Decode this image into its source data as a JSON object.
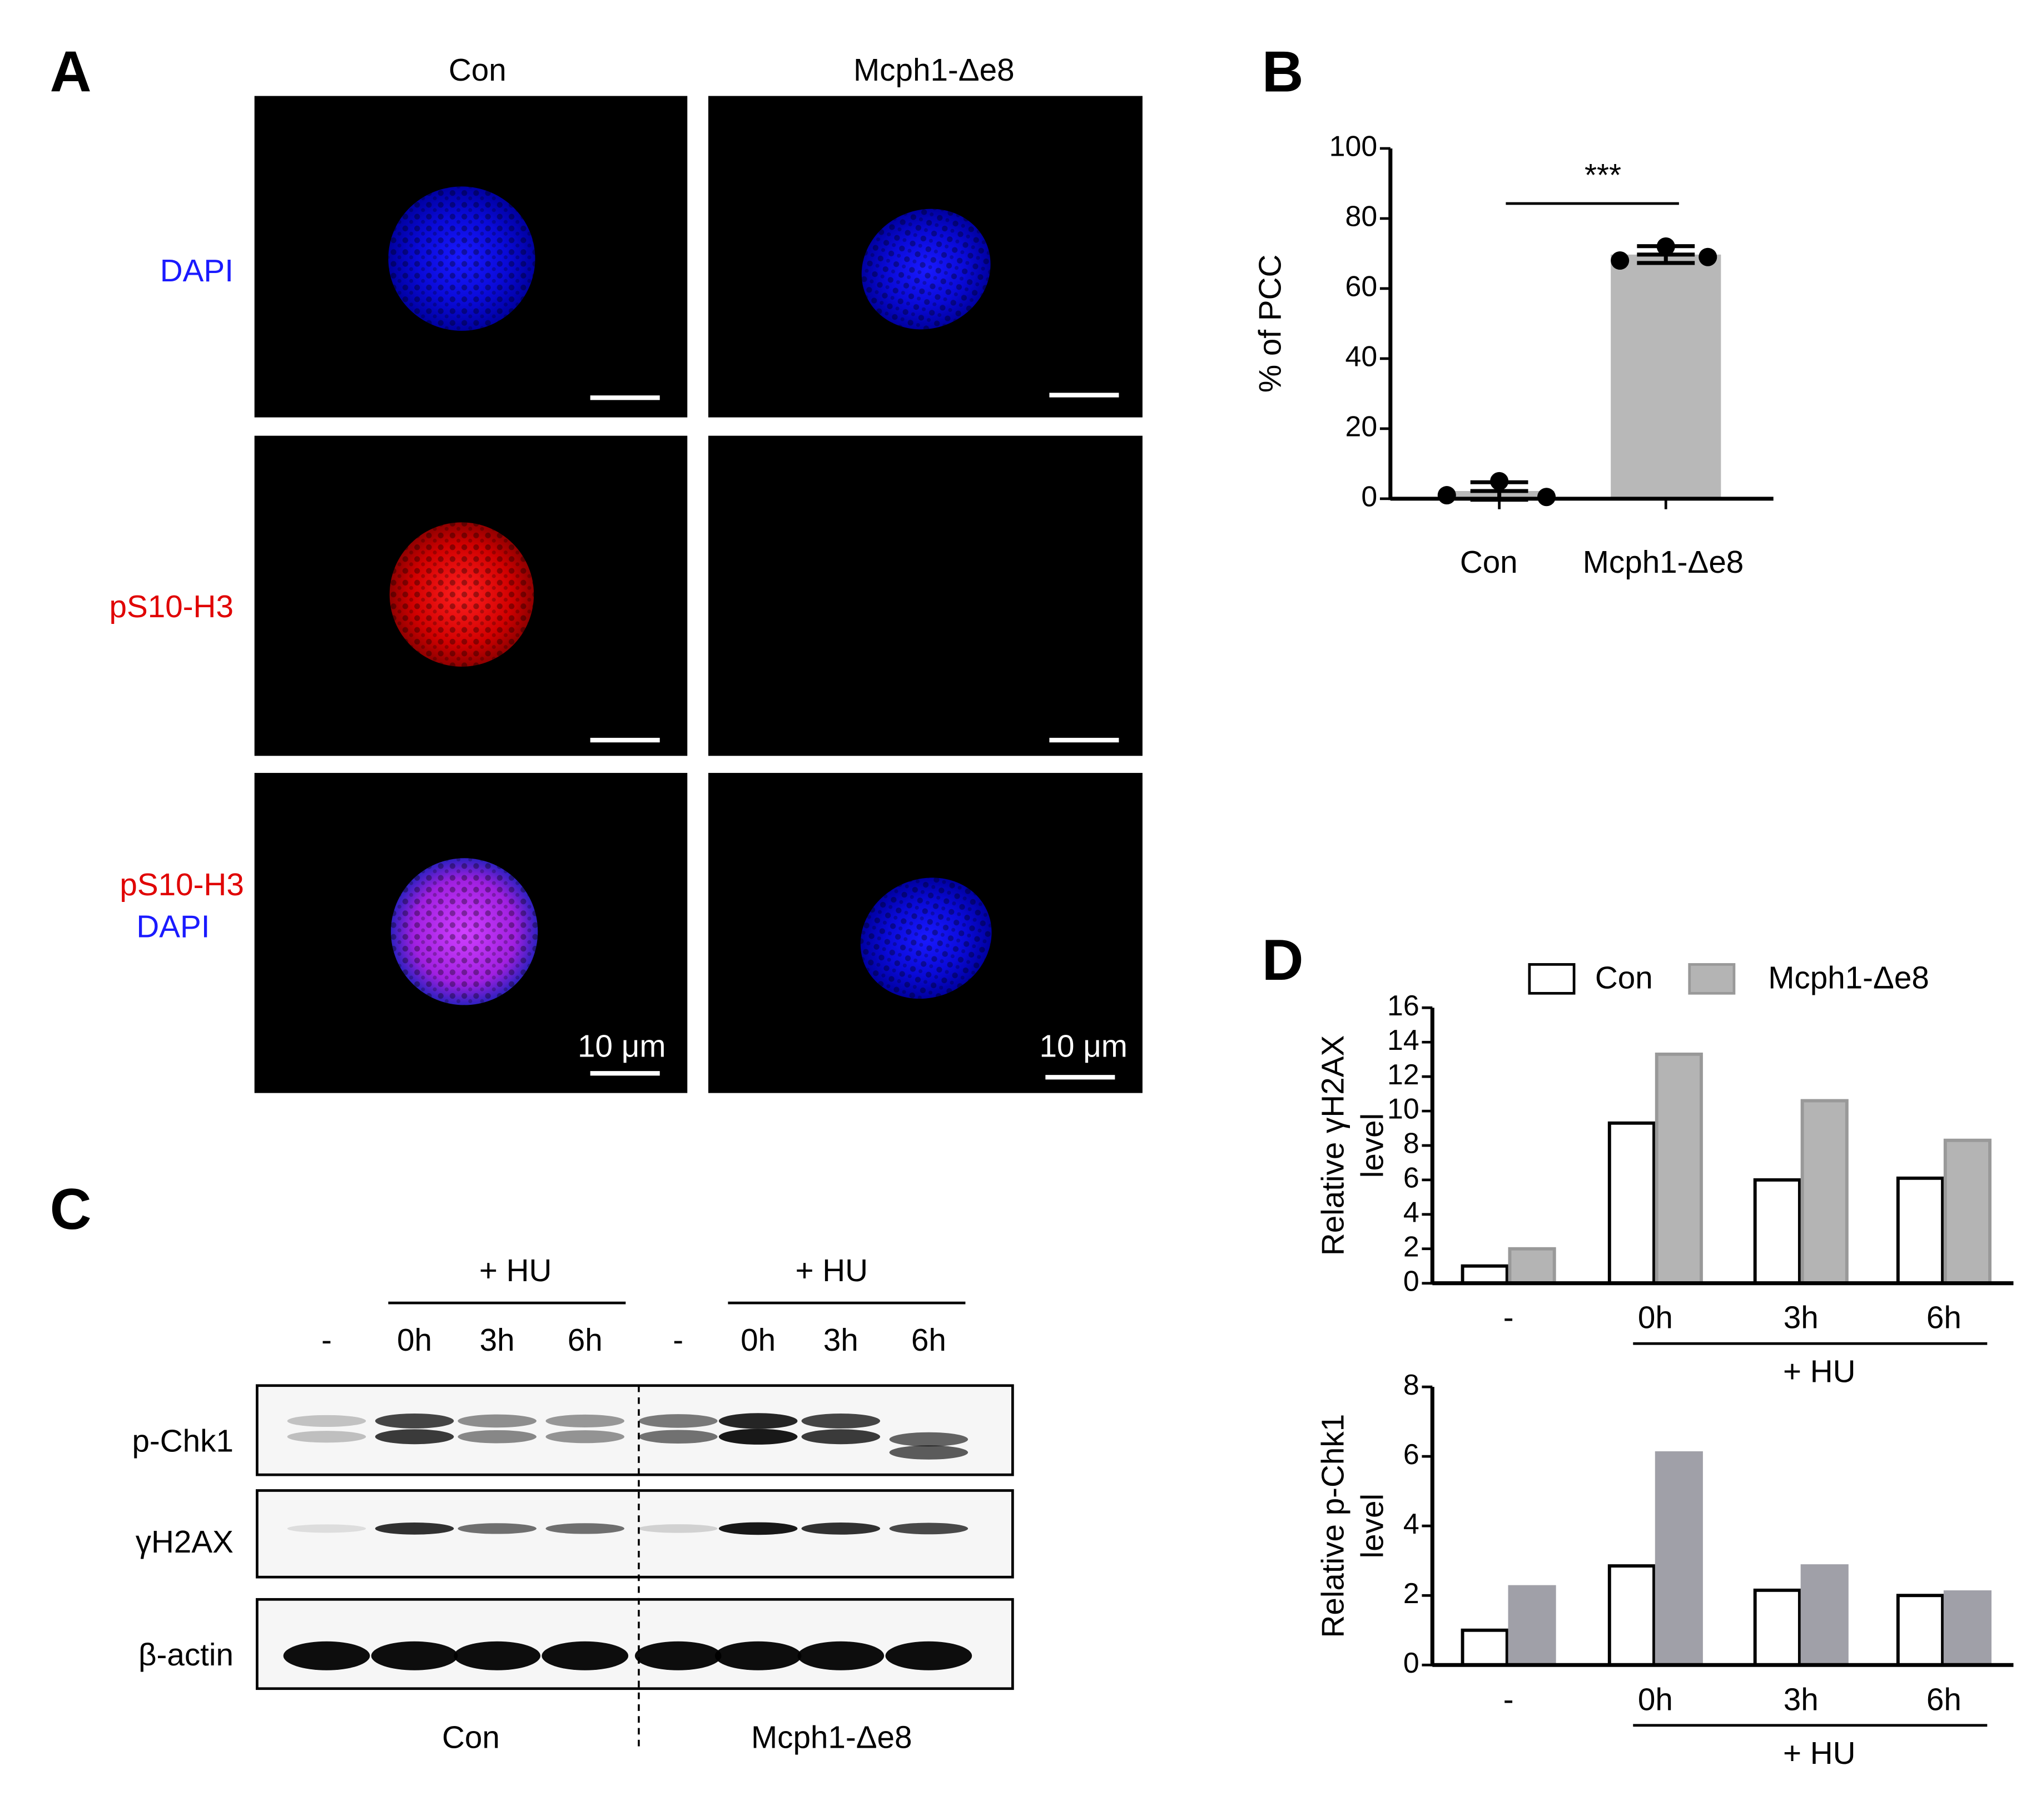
{
  "panel_labels": [
    "A",
    "B",
    "C",
    "D"
  ],
  "panel_a": {
    "columns": [
      "Con",
      "Mcph1-Δe8"
    ],
    "rows": [
      "DAPI",
      "pS10-H3",
      "pS10-H3",
      "DAPI"
    ],
    "scale_bar": [
      "10 μm",
      "10 μm"
    ]
  },
  "panel_c": {
    "treatment": [
      "+ HU",
      "+ HU"
    ],
    "lanes": [
      "-",
      "0h",
      "3h",
      "6h",
      "-",
      "0h",
      "3h",
      "6h"
    ],
    "proteins": [
      "p-Chk1",
      "γH2AX",
      "β-actin"
    ],
    "groups": [
      "Con",
      "Mcph1-Δe8"
    ]
  },
  "chart_data": [
    {
      "type": "dotbar",
      "ylabel": [
        "% of PCC"
      ],
      "categories": [
        "Con",
        "Mcph1-Δe8"
      ],
      "values": [
        2.2,
        69.7
      ],
      "errors": [
        2.5,
        2.4
      ],
      "points": [
        [
          1,
          5,
          0.5
        ],
        [
          68,
          72,
          69
        ]
      ],
      "color": "#b8b8b8",
      "annotation": "***",
      "ylim": [
        0,
        100
      ],
      "yticks": [
        0,
        20,
        40,
        60,
        80,
        100
      ]
    },
    {
      "type": "bar",
      "ylabel": [
        "Relative γH2AX",
        "level"
      ],
      "categories": [
        "-",
        "0h",
        "3h",
        "6h"
      ],
      "group_label": "+ HU",
      "legend": "top",
      "series": [
        {
          "name": "Con",
          "color": "#ffffff",
          "edgecolor": "#000000",
          "values": [
            1,
            9.3,
            6,
            6.1
          ]
        },
        {
          "name": "Mcph1-Δe8",
          "color": "#b4b4b4",
          "edgecolor": "#999999",
          "values": [
            2,
            13.3,
            10.6,
            8.3
          ]
        }
      ],
      "ylim": [
        0,
        16
      ],
      "yticks": [
        0,
        2,
        4,
        6,
        8,
        10,
        12,
        14,
        16
      ]
    },
    {
      "type": "bar",
      "ylabel": [
        "Relative p-Chk1",
        "level"
      ],
      "categories": [
        "-",
        "0h",
        "3h",
        "6h"
      ],
      "group_label": "+ HU",
      "series": [
        {
          "color": "#ffffff",
          "edgecolor": "#000000",
          "values": [
            1,
            2.85,
            2.15,
            2.0
          ]
        },
        {
          "color": "#a0a0a8",
          "edgecolor": "#a0a0a8",
          "values": [
            2.25,
            6.1,
            2.85,
            2.1
          ]
        }
      ],
      "ylim": [
        0,
        8
      ],
      "yticks": [
        0,
        2,
        4,
        6,
        8
      ]
    }
  ]
}
